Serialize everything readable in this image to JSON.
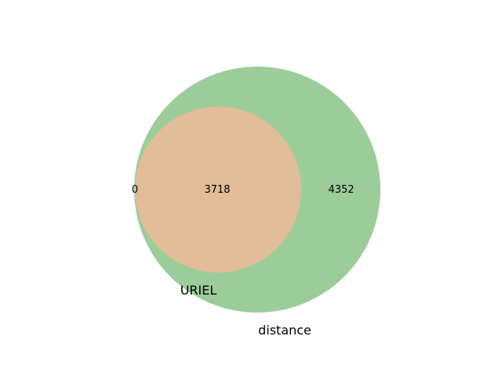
{
  "venn": {
    "sets": [
      {
        "label": "URIEL",
        "color": "#e0bc98"
      },
      {
        "label": "distance",
        "color": "#9ccc9a"
      }
    ],
    "regions": {
      "uriel_only": "0",
      "intersection": "3718",
      "distance_only": "4352"
    }
  }
}
